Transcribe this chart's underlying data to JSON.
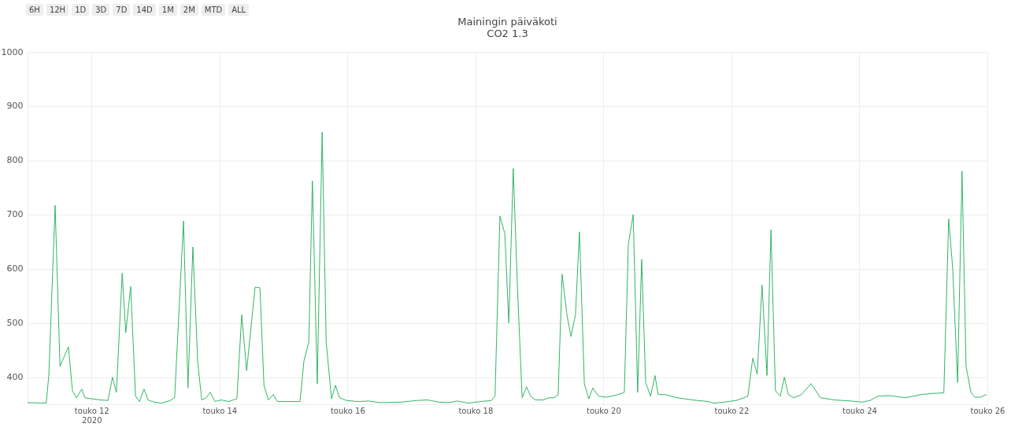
{
  "chart_data": {
    "type": "line",
    "title": "Mainingin päiväkoti",
    "subtitle": "CO2  1.3",
    "annotations": [
      "6H",
      "12H",
      "1D",
      "3D",
      "7D",
      "14D",
      "1M",
      "2M",
      "MTD",
      "ALL"
    ],
    "x": [
      "2020-05-11T00:00",
      "2020-05-11T07:00",
      "2020-05-11T08:00",
      "2020-05-11T10:20",
      "2020-05-11T12:10",
      "2020-05-11T15:20",
      "2020-05-11T16:50",
      "2020-05-11T18:20",
      "2020-05-11T20:20",
      "2020-05-11T21:30",
      "2020-05-12T03:10",
      "2020-05-12T06:10",
      "2020-05-12T07:50",
      "2020-05-12T09:20",
      "2020-05-12T11:30",
      "2020-05-12T12:50",
      "2020-05-12T14:40",
      "2020-05-12T16:30",
      "2020-05-12T18:00",
      "2020-05-12T19:40",
      "2020-05-12T21:10",
      "2020-05-12T23:20",
      "2020-05-13T02:10",
      "2020-05-13T05:10",
      "2020-05-13T07:10",
      "2020-05-13T10:30",
      "2020-05-13T12:10",
      "2020-05-13T14:00",
      "2020-05-13T15:50",
      "2020-05-13T17:20",
      "2020-05-13T19:00",
      "2020-05-13T20:30",
      "2020-05-13T22:20",
      "2020-05-14T00:40",
      "2020-05-14T03:20",
      "2020-05-14T06:30",
      "2020-05-14T08:20",
      "2020-05-14T10:10",
      "2020-05-14T13:20",
      "2020-05-14T15:10",
      "2020-05-14T16:40",
      "2020-05-14T18:20",
      "2020-05-14T20:10",
      "2020-05-14T21:40",
      "2020-05-15T06:10",
      "2020-05-15T07:40",
      "2020-05-15T09:30",
      "2020-05-15T10:50",
      "2020-05-15T12:40",
      "2020-05-15T14:30",
      "2020-05-15T16:00",
      "2020-05-15T18:00",
      "2020-05-15T19:30",
      "2020-05-15T21:00",
      "2020-05-15T23:40",
      "2020-05-16T04:00",
      "2020-05-16T07:50",
      "2020-05-16T12:00",
      "2020-05-16T20:20",
      "2020-05-17T02:10",
      "2020-05-17T06:00",
      "2020-05-17T10:10",
      "2020-05-17T14:00",
      "2020-05-17T17:10",
      "2020-05-17T21:20",
      "2020-05-18T01:50",
      "2020-05-18T06:00",
      "2020-05-18T07:20",
      "2020-05-18T09:10",
      "2020-05-18T11:00",
      "2020-05-18T12:30",
      "2020-05-18T14:10",
      "2020-05-18T15:40",
      "2020-05-18T17:30",
      "2020-05-18T19:10",
      "2020-05-18T20:40",
      "2020-05-18T22:30",
      "2020-05-19T01:30",
      "2020-05-19T03:30",
      "2020-05-19T05:20",
      "2020-05-19T07:00",
      "2020-05-19T08:30",
      "2020-05-19T10:20",
      "2020-05-19T11:50",
      "2020-05-19T13:30",
      "2020-05-19T15:00",
      "2020-05-19T16:50",
      "2020-05-19T18:30",
      "2020-05-19T20:00",
      "2020-05-19T22:10",
      "2020-05-20T01:00",
      "2020-05-20T03:10",
      "2020-05-20T06:20",
      "2020-05-20T07:50",
      "2020-05-20T09:20",
      "2020-05-20T11:10",
      "2020-05-20T12:50",
      "2020-05-20T14:20",
      "2020-05-20T15:50",
      "2020-05-20T17:40",
      "2020-05-20T19:20",
      "2020-05-20T20:30",
      "2020-05-20T23:10",
      "2020-05-21T03:40",
      "2020-05-21T06:30",
      "2020-05-21T11:00",
      "2020-05-21T15:30",
      "2020-05-21T17:10",
      "2020-05-21T21:20",
      "2020-05-22T01:50",
      "2020-05-22T04:40",
      "2020-05-22T06:10",
      "2020-05-22T08:00",
      "2020-05-22T09:40",
      "2020-05-22T11:30",
      "2020-05-22T13:20",
      "2020-05-22T14:50",
      "2020-05-22T16:30",
      "2020-05-22T18:20",
      "2020-05-22T19:50",
      "2020-05-22T21:20",
      "2020-05-22T23:20",
      "2020-05-23T02:20",
      "2020-05-23T05:50",
      "2020-05-23T07:40",
      "2020-05-23T09:20",
      "2020-05-23T14:40",
      "2020-05-23T20:40",
      "2020-05-24T01:00",
      "2020-05-24T04:00",
      "2020-05-24T07:00",
      "2020-05-24T11:20",
      "2020-05-24T17:20",
      "2020-05-24T23:10",
      "2020-05-25T03:40",
      "2020-05-25T07:40",
      "2020-05-25T09:30",
      "2020-05-25T11:00",
      "2020-05-25T12:50",
      "2020-05-25T14:30",
      "2020-05-25T16:00",
      "2020-05-25T17:50",
      "2020-05-25T19:20",
      "2020-05-25T21:20",
      "2020-05-25T23:40"
    ],
    "series": [
      {
        "color": "#33b566",
        "values": [
          353,
          352,
          405,
          717,
          420,
          456,
          375,
          362,
          378,
          362,
          358,
          357,
          400,
          372,
          592,
          482,
          567,
          365,
          355,
          378,
          358,
          354,
          352,
          356,
          362,
          688,
          380,
          640,
          427,
          358,
          362,
          372,
          355,
          358,
          355,
          360,
          515,
          412,
          566,
          565,
          385,
          358,
          368,
          355,
          355,
          430,
          465,
          762,
          388,
          852,
          465,
          360,
          385,
          362,
          357,
          355,
          356,
          353,
          354,
          357,
          358,
          354,
          353,
          356,
          352,
          355,
          357,
          365,
          697,
          665,
          500,
          785,
          575,
          362,
          382,
          365,
          358,
          358,
          362,
          362,
          367,
          590,
          514,
          475,
          515,
          668,
          388,
          360,
          380,
          365,
          363,
          365,
          369,
          372,
          645,
          700,
          372,
          617,
          390,
          365,
          403,
          368,
          368,
          362,
          360,
          357,
          355,
          352,
          354,
          357,
          362,
          365,
          435,
          405,
          570,
          403,
          672,
          375,
          365,
          400,
          368,
          362,
          368,
          388,
          375,
          362,
          358,
          356,
          354,
          357,
          365,
          366,
          362,
          368,
          370,
          371,
          692,
          600,
          390,
          780,
          420,
          372,
          363,
          363,
          368
        ]
      }
    ],
    "xlim": [
      "2020-05-11T00:00",
      "2020-05-26T00:00"
    ],
    "xticks": [
      {
        "value": "2020-05-12",
        "label": "touko 12\n2020"
      },
      {
        "value": "2020-05-14",
        "label": "touko 14"
      },
      {
        "value": "2020-05-16",
        "label": "touko 16"
      },
      {
        "value": "2020-05-18",
        "label": "touko 18"
      },
      {
        "value": "2020-05-20",
        "label": "touko 20"
      },
      {
        "value": "2020-05-22",
        "label": "touko 22"
      },
      {
        "value": "2020-05-24",
        "label": "touko 24"
      },
      {
        "value": "2020-05-26",
        "label": "touko 26"
      }
    ],
    "ylim": [
      350,
      1000
    ],
    "yticks": [
      400,
      500,
      600,
      700,
      800,
      900,
      1000
    ],
    "grid": true,
    "legend": false,
    "marker": "none",
    "line_style": "solid"
  }
}
